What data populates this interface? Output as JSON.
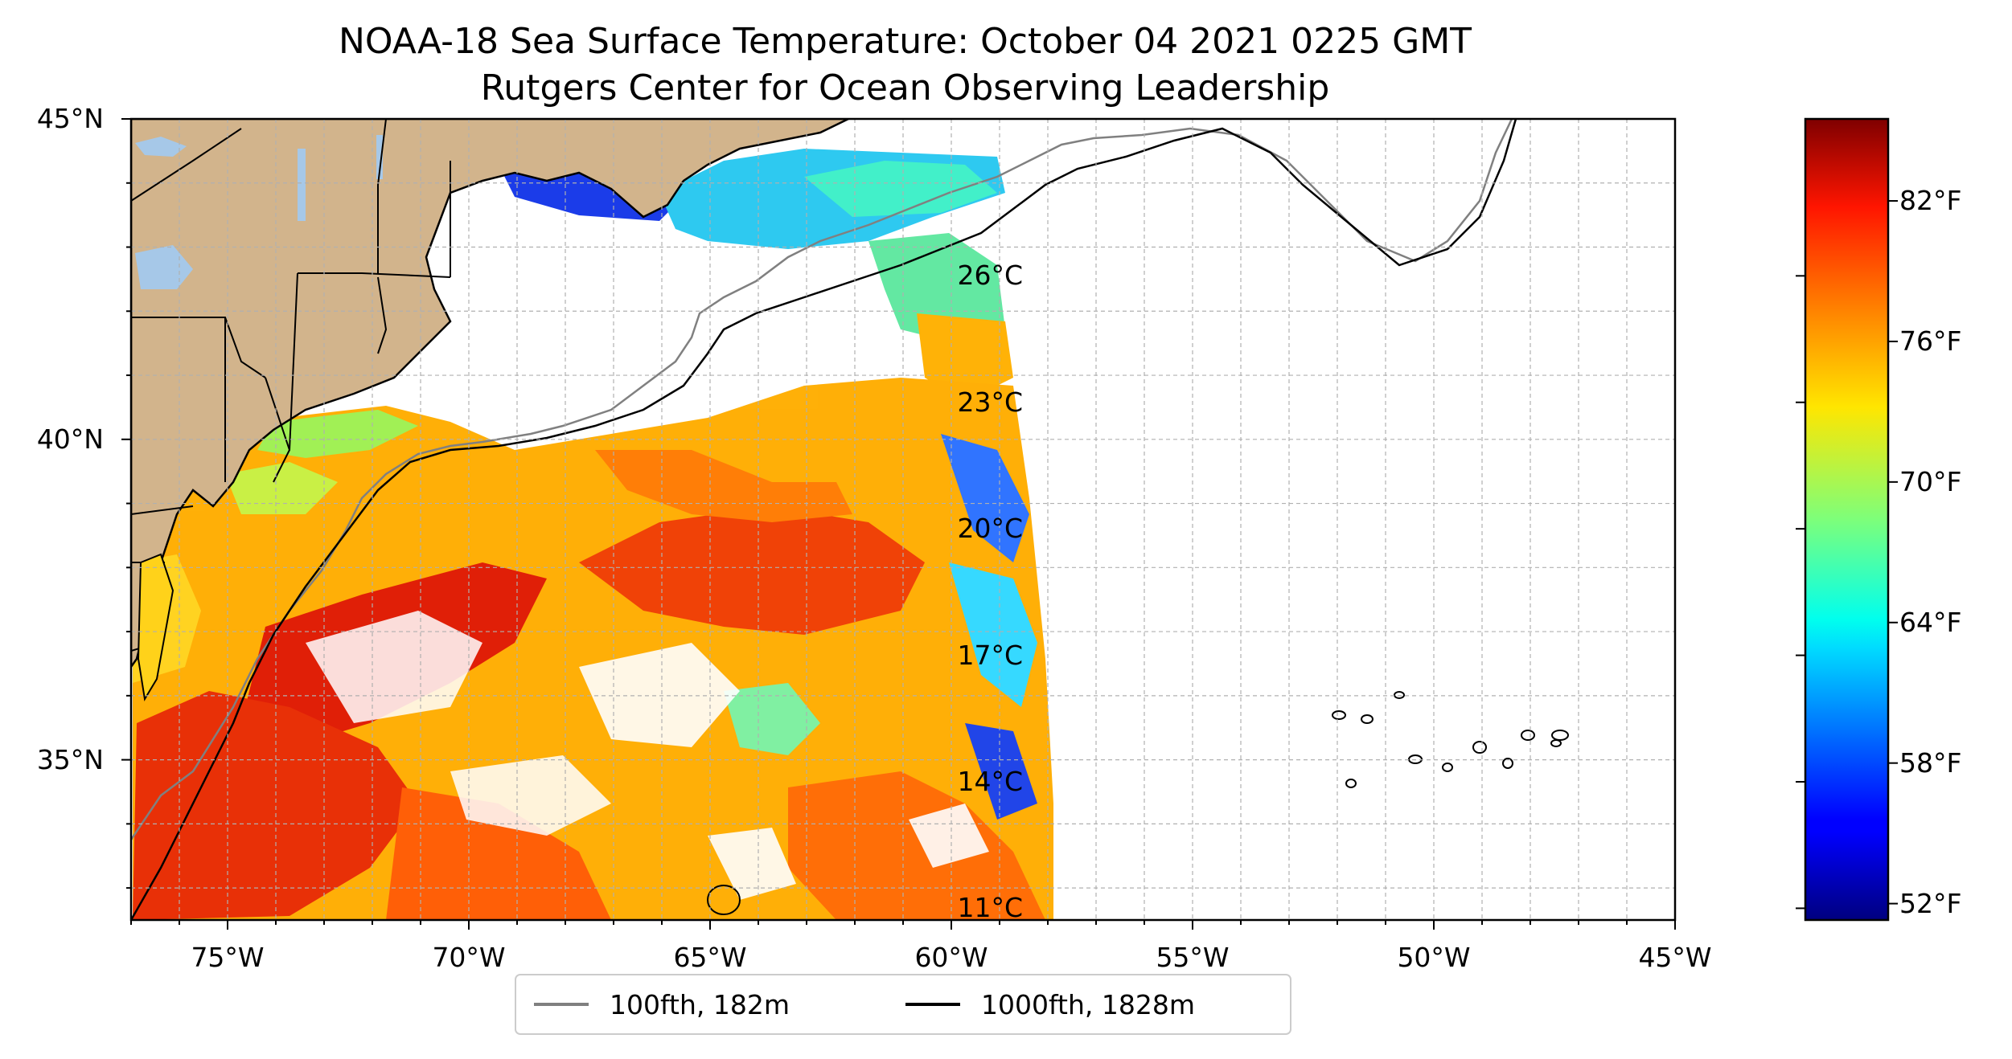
{
  "title": {
    "line1": "NOAA-18 Sea Surface Temperature: October 04 2021 0225 GMT",
    "line2": "Rutgers Center for Ocean Observing Leadership"
  },
  "map": {
    "lon_range": [
      -77,
      -45
    ],
    "lat_range": [
      32.5,
      45
    ],
    "lon_ticks": [
      {
        "value": -75,
        "label": "75°W"
      },
      {
        "value": -70,
        "label": "70°W"
      },
      {
        "value": -65,
        "label": "65°W"
      },
      {
        "value": -60,
        "label": "60°W"
      },
      {
        "value": -55,
        "label": "55°W"
      },
      {
        "value": -50,
        "label": "50°W"
      },
      {
        "value": -45,
        "label": "45°W"
      }
    ],
    "lat_ticks": [
      {
        "value": 45,
        "label": "45°N"
      },
      {
        "value": 40,
        "label": "40°N"
      },
      {
        "value": 35,
        "label": "35°N"
      }
    ],
    "gridlines": true,
    "data_swath_east_edge_lon": -58,
    "colors": {
      "land": "#d2b48c",
      "lakes": "#a6c8e8",
      "coastline": "#000000",
      "contour_100fth": "#808080",
      "contour_1000fth": "#000000",
      "gridline": "#b0b0b0"
    }
  },
  "colorbar": {
    "colormap": "jet",
    "fahrenheit_ticks": [
      {
        "value": 82,
        "label": "82°F"
      },
      {
        "value": 76,
        "label": "76°F"
      },
      {
        "value": 70,
        "label": "70°F"
      },
      {
        "value": 64,
        "label": "64°F"
      },
      {
        "value": 58,
        "label": "58°F"
      },
      {
        "value": 52,
        "label": "52°F"
      }
    ],
    "celsius_ticks": [
      {
        "value": 26,
        "label": "26°C"
      },
      {
        "value": 23,
        "label": "23°C"
      },
      {
        "value": 20,
        "label": "20°C"
      },
      {
        "value": 17,
        "label": "17°C"
      },
      {
        "value": 14,
        "label": "14°C"
      },
      {
        "value": 11,
        "label": "11°C"
      }
    ],
    "range_f": [
      51.3,
      85.5
    ]
  },
  "legend": {
    "location": "bottom-center",
    "items": [
      {
        "label": "100fth, 182m",
        "color": "#808080"
      },
      {
        "label": "1000fth, 1828m",
        "color": "#000000"
      }
    ]
  }
}
